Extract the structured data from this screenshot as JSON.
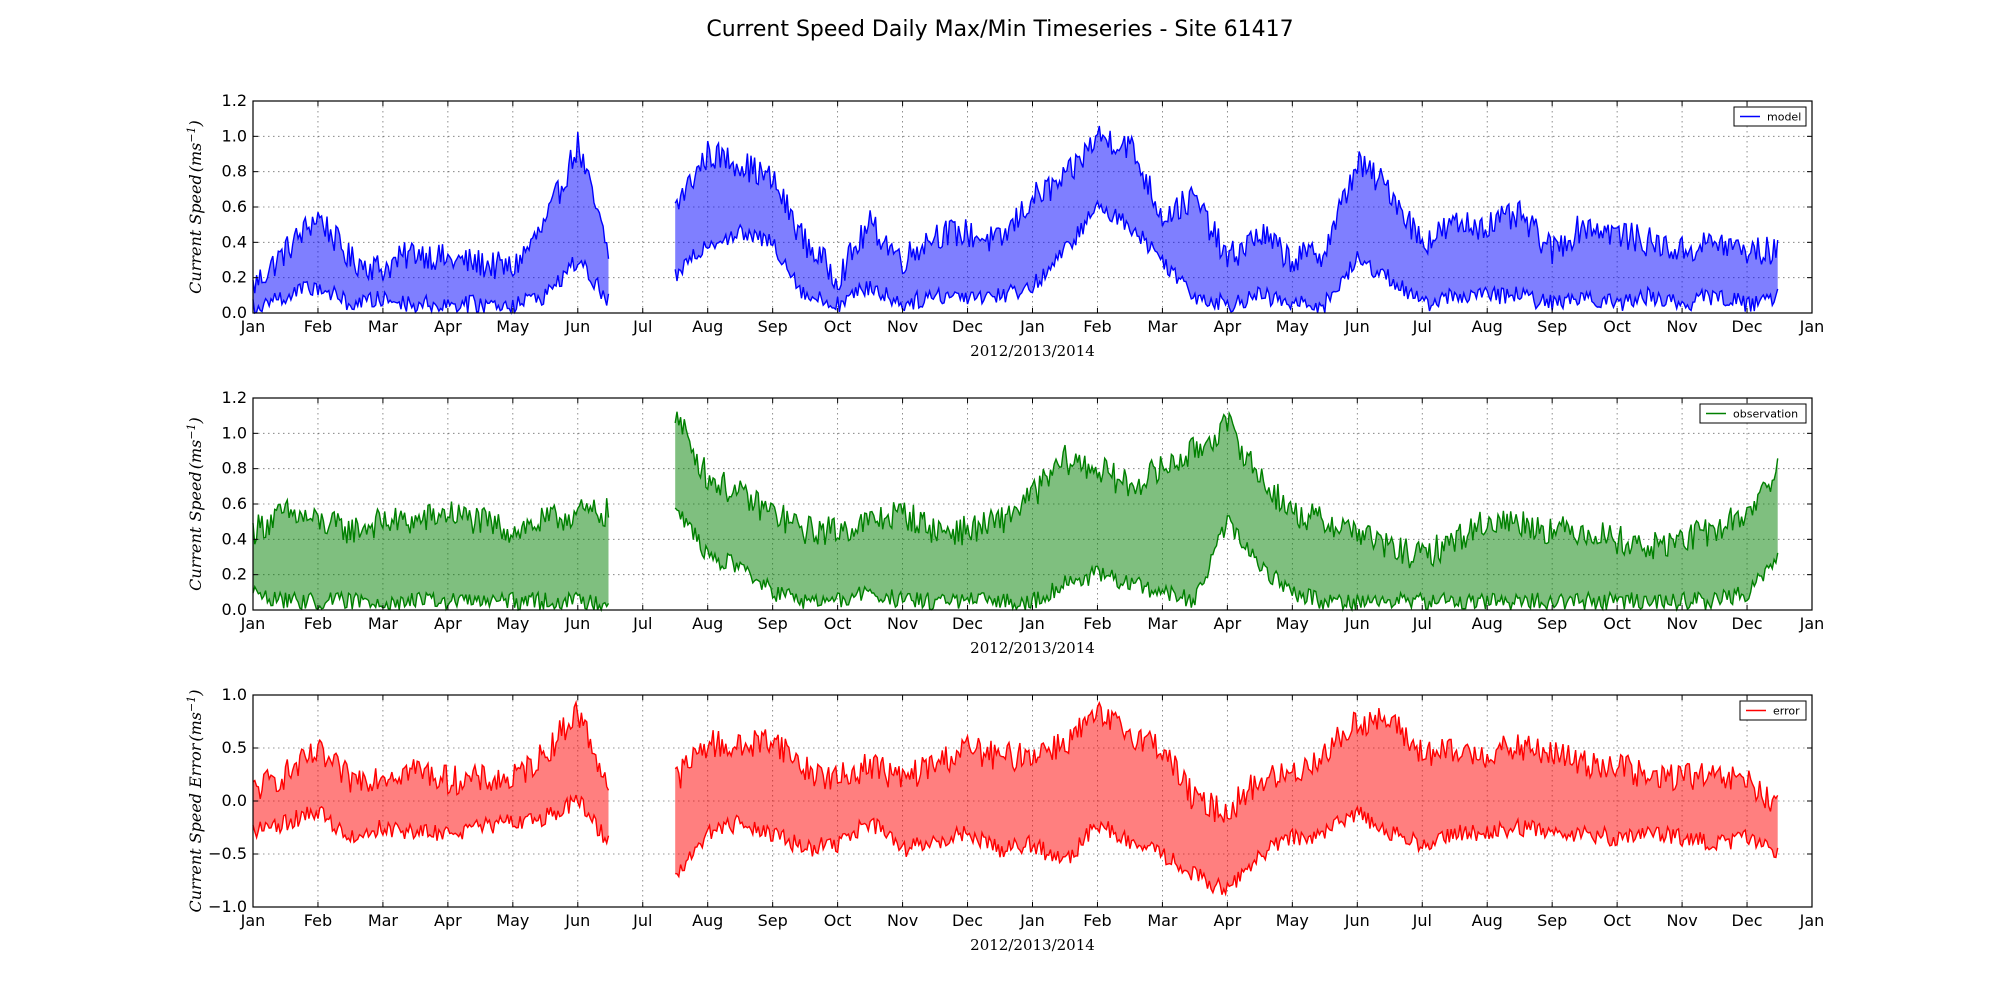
{
  "figure": {
    "suptitle": "Current Speed Daily Max/Min Timeseries - Site 61417"
  },
  "colors": {
    "model": "#0000ff",
    "observation": "#008000",
    "error": "#ff0000"
  },
  "chart_data": [
    {
      "type": "area",
      "name": "model-panel",
      "title": "",
      "xlabel": "2012/2013/2014",
      "ylabel": "Current Speed (m s^-1)",
      "ylabel_base": "Current Speed",
      "ylabel_unit": "(ms",
      "ylabel_sup": "−1",
      "ylabel_close": ")",
      "ylim": [
        0.0,
        1.2
      ],
      "yticks": [
        0.0,
        0.2,
        0.4,
        0.6,
        0.8,
        1.0,
        1.2
      ],
      "ytick_labels": [
        "0.0",
        "0.2",
        "0.4",
        "0.6",
        "0.8",
        "1.0",
        "1.2"
      ],
      "xtick_labels": [
        "Jan",
        "Feb",
        "Mar",
        "Apr",
        "May",
        "Jun",
        "Jul",
        "Aug",
        "Sep",
        "Oct",
        "Nov",
        "Dec",
        "Jan",
        "Feb",
        "Mar",
        "Apr",
        "May",
        "Jun",
        "Jul",
        "Aug",
        "Sep",
        "Oct",
        "Nov",
        "Dec",
        "Jan"
      ],
      "grid": true,
      "legend": {
        "label": "model",
        "position": "top-right"
      },
      "color": "#0000ff",
      "series": [
        {
          "name": "model",
          "x": [
            0.0,
            0.5,
            1.0,
            1.5,
            2.0,
            2.5,
            3.0,
            3.5,
            4.0,
            4.5,
            5.0,
            5.5,
            6.0,
            6.5,
            7.0,
            7.5,
            8.0,
            8.5,
            9.0,
            9.5,
            10.0,
            10.5,
            11.0,
            11.5,
            12.0,
            12.5,
            13.0,
            13.5,
            14.0,
            14.5,
            15.0,
            15.5,
            16.0,
            16.5,
            17.0,
            17.5,
            18.0,
            18.5,
            19.0,
            19.5,
            20.0,
            20.5,
            21.0,
            21.5,
            22.0,
            22.5,
            23.0,
            23.5,
            24.0
          ],
          "max": [
            0.15,
            0.35,
            0.55,
            0.3,
            0.25,
            0.35,
            0.3,
            0.28,
            0.25,
            0.5,
            0.95,
            0.3,
            null,
            0.6,
            0.9,
            0.85,
            0.75,
            0.4,
            0.2,
            0.5,
            0.3,
            0.45,
            0.45,
            0.4,
            0.65,
            0.75,
            1.0,
            0.95,
            0.55,
            0.65,
            0.3,
            0.45,
            0.3,
            0.35,
            0.85,
            0.7,
            0.4,
            0.5,
            0.5,
            0.55,
            0.35,
            0.5,
            0.45,
            0.4,
            0.35,
            0.4,
            0.35,
            0.35,
            null
          ],
          "min": [
            0.03,
            0.1,
            0.15,
            0.05,
            0.08,
            0.05,
            0.05,
            0.05,
            0.05,
            0.1,
            0.3,
            0.05,
            null,
            0.2,
            0.4,
            0.45,
            0.4,
            0.1,
            0.05,
            0.15,
            0.05,
            0.1,
            0.1,
            0.1,
            0.15,
            0.35,
            0.6,
            0.5,
            0.3,
            0.1,
            0.05,
            0.1,
            0.05,
            0.05,
            0.3,
            0.2,
            0.05,
            0.1,
            0.1,
            0.1,
            0.05,
            0.1,
            0.05,
            0.1,
            0.05,
            0.1,
            0.05,
            0.1,
            null
          ]
        }
      ]
    },
    {
      "type": "area",
      "name": "observation-panel",
      "title": "",
      "xlabel": "2012/2013/2014",
      "ylabel": "Current Speed (m s^-1)",
      "ylabel_base": "Current Speed",
      "ylabel_unit": "(ms",
      "ylabel_sup": "−1",
      "ylabel_close": ")",
      "ylim": [
        0.0,
        1.2
      ],
      "yticks": [
        0.0,
        0.2,
        0.4,
        0.6,
        0.8,
        1.0,
        1.2
      ],
      "ytick_labels": [
        "0.0",
        "0.2",
        "0.4",
        "0.6",
        "0.8",
        "1.0",
        "1.2"
      ],
      "xtick_labels": [
        "Jan",
        "Feb",
        "Mar",
        "Apr",
        "May",
        "Jun",
        "Jul",
        "Aug",
        "Sep",
        "Oct",
        "Nov",
        "Dec",
        "Jan",
        "Feb",
        "Mar",
        "Apr",
        "May",
        "Jun",
        "Jul",
        "Aug",
        "Sep",
        "Oct",
        "Nov",
        "Dec",
        "Jan"
      ],
      "grid": true,
      "legend": {
        "label": "observation",
        "position": "top-right"
      },
      "color": "#008000",
      "series": [
        {
          "name": "observation",
          "x": [
            0.0,
            0.5,
            1.0,
            1.5,
            2.0,
            2.5,
            3.0,
            3.5,
            4.0,
            4.5,
            5.0,
            5.5,
            6.0,
            6.5,
            7.0,
            7.5,
            8.0,
            8.5,
            9.0,
            9.5,
            10.0,
            10.5,
            11.0,
            11.5,
            12.0,
            12.5,
            13.0,
            13.5,
            14.0,
            14.5,
            15.0,
            15.5,
            16.0,
            16.5,
            17.0,
            17.5,
            18.0,
            18.5,
            19.0,
            19.5,
            20.0,
            20.5,
            21.0,
            21.5,
            22.0,
            22.5,
            23.0,
            23.5,
            24.0
          ],
          "max": [
            0.45,
            0.55,
            0.5,
            0.45,
            0.5,
            0.5,
            0.55,
            0.5,
            0.45,
            0.5,
            0.55,
            0.55,
            null,
            1.1,
            0.75,
            0.65,
            0.55,
            0.45,
            0.45,
            0.5,
            0.55,
            0.45,
            0.45,
            0.5,
            0.65,
            0.85,
            0.8,
            0.7,
            0.8,
            0.9,
            1.05,
            0.75,
            0.55,
            0.5,
            0.45,
            0.35,
            0.3,
            0.4,
            0.5,
            0.5,
            0.45,
            0.45,
            0.4,
            0.35,
            0.4,
            0.45,
            0.55,
            0.8,
            null
          ],
          "min": [
            0.1,
            0.05,
            0.05,
            0.05,
            0.05,
            0.05,
            0.05,
            0.05,
            0.05,
            0.05,
            0.05,
            0.05,
            null,
            0.6,
            0.3,
            0.25,
            0.1,
            0.05,
            0.05,
            0.1,
            0.05,
            0.05,
            0.05,
            0.05,
            0.05,
            0.15,
            0.2,
            0.15,
            0.1,
            0.05,
            0.5,
            0.25,
            0.1,
            0.05,
            0.05,
            0.05,
            0.05,
            0.05,
            0.05,
            0.05,
            0.05,
            0.05,
            0.05,
            0.05,
            0.05,
            0.05,
            0.1,
            0.3,
            null
          ]
        }
      ]
    },
    {
      "type": "area",
      "name": "error-panel",
      "title": "",
      "xlabel": "2012/2013/2014",
      "ylabel": "Current Speed Error (m s^-1)",
      "ylabel_base": "Current Speed Error",
      "ylabel_unit": "(ms",
      "ylabel_sup": "−1",
      "ylabel_close": ")",
      "ylim": [
        -1.0,
        1.0
      ],
      "yticks": [
        -1.0,
        -0.5,
        0.0,
        0.5,
        1.0
      ],
      "ytick_labels": [
        "−1.0",
        "−0.5",
        "0.0",
        "0.5",
        "1.0"
      ],
      "xtick_labels": [
        "Jan",
        "Feb",
        "Mar",
        "Apr",
        "May",
        "Jun",
        "Jul",
        "Aug",
        "Sep",
        "Oct",
        "Nov",
        "Dec",
        "Jan",
        "Feb",
        "Mar",
        "Apr",
        "May",
        "Jun",
        "Jul",
        "Aug",
        "Sep",
        "Oct",
        "Nov",
        "Dec",
        "Jan"
      ],
      "grid": true,
      "legend": {
        "label": "error",
        "position": "top-right"
      },
      "color": "#ff0000",
      "series": [
        {
          "name": "error",
          "x": [
            0.0,
            0.5,
            1.0,
            1.5,
            2.0,
            2.5,
            3.0,
            3.5,
            4.0,
            4.5,
            5.0,
            5.5,
            6.0,
            6.5,
            7.0,
            7.5,
            8.0,
            8.5,
            9.0,
            9.5,
            10.0,
            10.5,
            11.0,
            11.5,
            12.0,
            12.5,
            13.0,
            13.5,
            14.0,
            14.5,
            15.0,
            15.5,
            16.0,
            16.5,
            17.0,
            17.5,
            18.0,
            18.5,
            19.0,
            19.5,
            20.0,
            20.5,
            21.0,
            21.5,
            22.0,
            22.5,
            23.0,
            23.5,
            24.0
          ],
          "max": [
            0.1,
            0.25,
            0.45,
            0.2,
            0.25,
            0.3,
            0.2,
            0.2,
            0.2,
            0.45,
            0.85,
            0.1,
            null,
            0.2,
            0.55,
            0.5,
            0.6,
            0.3,
            0.2,
            0.35,
            0.2,
            0.35,
            0.5,
            0.4,
            0.45,
            0.55,
            0.8,
            0.65,
            0.5,
            0.0,
            -0.1,
            0.2,
            0.25,
            0.45,
            0.75,
            0.75,
            0.45,
            0.45,
            0.45,
            0.5,
            0.45,
            0.35,
            0.35,
            0.2,
            0.25,
            0.2,
            0.2,
            -0.1,
            null
          ],
          "min": [
            -0.3,
            -0.2,
            -0.1,
            -0.35,
            -0.25,
            -0.3,
            -0.3,
            -0.25,
            -0.2,
            -0.15,
            0.0,
            -0.4,
            null,
            -0.7,
            -0.3,
            -0.2,
            -0.3,
            -0.45,
            -0.4,
            -0.2,
            -0.45,
            -0.4,
            -0.3,
            -0.45,
            -0.4,
            -0.6,
            -0.2,
            -0.4,
            -0.5,
            -0.7,
            -0.85,
            -0.5,
            -0.35,
            -0.3,
            -0.1,
            -0.3,
            -0.4,
            -0.3,
            -0.3,
            -0.25,
            -0.3,
            -0.3,
            -0.35,
            -0.3,
            -0.35,
            -0.4,
            -0.35,
            -0.5,
            null
          ]
        }
      ]
    }
  ]
}
